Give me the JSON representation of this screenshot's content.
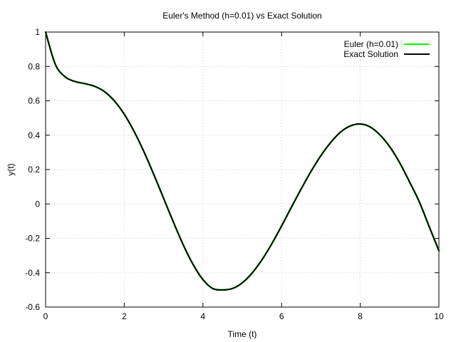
{
  "chart_data": {
    "type": "line",
    "title": "Euler's Method (h=0.01) vs Exact Solution",
    "xlabel": "Time (t)",
    "ylabel": "y(t)",
    "xlim": [
      0,
      10
    ],
    "ylim": [
      -0.6,
      1
    ],
    "xticks": [
      0,
      2,
      4,
      6,
      8,
      10
    ],
    "yticks": [
      -0.6,
      -0.4,
      -0.2,
      0,
      0.2,
      0.4,
      0.6,
      0.8,
      1
    ],
    "grid": true,
    "legend_position": "top-right",
    "series": [
      {
        "name": "Euler (h=0.01)",
        "color": "#00ff00",
        "x": [
          0,
          0.25,
          0.5,
          0.75,
          1,
          1.25,
          1.5,
          1.75,
          2,
          2.25,
          2.5,
          2.75,
          3,
          3.25,
          3.5,
          3.75,
          4,
          4.25,
          4.5,
          4.75,
          5,
          5.25,
          5.5,
          5.75,
          6,
          6.25,
          6.5,
          6.75,
          7,
          7.25,
          7.5,
          7.75,
          8,
          8.25,
          8.5,
          8.75,
          9,
          9.25,
          9.5,
          9.75,
          10
        ],
        "y": [
          1,
          0.811,
          0.739,
          0.712,
          0.7,
          0.684,
          0.653,
          0.599,
          0.522,
          0.422,
          0.304,
          0.172,
          0.033,
          -0.106,
          -0.238,
          -0.352,
          -0.44,
          -0.492,
          -0.5,
          -0.492,
          -0.459,
          -0.402,
          -0.325,
          -0.232,
          -0.128,
          -0.019,
          0.088,
          0.19,
          0.281,
          0.358,
          0.418,
          0.454,
          0.465,
          0.448,
          0.402,
          0.333,
          0.241,
          0.13,
          0.013,
          -0.13,
          -0.272
        ]
      },
      {
        "name": "Exact Solution",
        "color": "#000000",
        "x": [
          0,
          0.25,
          0.5,
          0.75,
          1,
          1.25,
          1.5,
          1.75,
          2,
          2.25,
          2.5,
          2.75,
          3,
          3.25,
          3.5,
          3.75,
          4,
          4.25,
          4.5,
          4.75,
          5,
          5.25,
          5.5,
          5.75,
          6,
          6.25,
          6.5,
          6.75,
          7,
          7.25,
          7.5,
          7.75,
          8,
          8.25,
          8.5,
          8.75,
          9,
          9.25,
          9.5,
          9.75,
          10
        ],
        "y": [
          1,
          0.811,
          0.739,
          0.712,
          0.7,
          0.684,
          0.653,
          0.599,
          0.522,
          0.422,
          0.304,
          0.172,
          0.033,
          -0.106,
          -0.238,
          -0.352,
          -0.44,
          -0.492,
          -0.5,
          -0.492,
          -0.459,
          -0.402,
          -0.325,
          -0.232,
          -0.128,
          -0.019,
          0.088,
          0.19,
          0.281,
          0.358,
          0.418,
          0.454,
          0.465,
          0.448,
          0.402,
          0.333,
          0.241,
          0.13,
          0.013,
          -0.13,
          -0.272
        ]
      }
    ]
  }
}
